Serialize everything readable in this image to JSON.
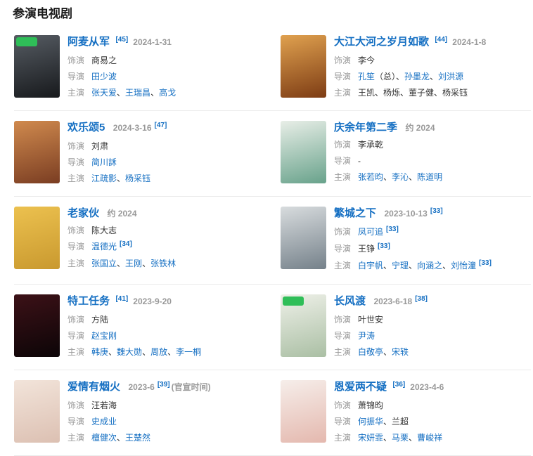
{
  "header": {
    "title": "参演电视剧"
  },
  "colors": {
    "link_blue": "#136ec2",
    "label_gray": "#999999",
    "text_dark": "#333333",
    "divider": "#ebebeb",
    "badge_green": "#2fbe58"
  },
  "items": [
    {
      "title": "阿麦从军",
      "meta": [
        {
          "kind": "ref",
          "text": "[45]"
        },
        {
          "kind": "date",
          "text": "2024-1-31"
        }
      ],
      "poster": {
        "c1": "#565c63",
        "c2": "#17191c",
        "badge": true
      },
      "lines": [
        {
          "label": "饰演",
          "segs": [
            {
              "text": "商易之",
              "link": false
            }
          ]
        },
        {
          "label": "导演",
          "segs": [
            {
              "text": "田少波",
              "link": true
            }
          ]
        },
        {
          "label": "主演",
          "segs": [
            {
              "text": "张天爱",
              "link": true
            },
            {
              "text": "、",
              "link": false
            },
            {
              "text": "王瑞昌",
              "link": true
            },
            {
              "text": "、",
              "link": false
            },
            {
              "text": "高戈",
              "link": true
            }
          ]
        }
      ]
    },
    {
      "title": "大江大河之岁月如歌",
      "meta": [
        {
          "kind": "ref",
          "text": "[44]"
        },
        {
          "kind": "date",
          "text": "2024-1-8"
        }
      ],
      "poster": {
        "c1": "#e0a14f",
        "c2": "#7d3c14",
        "badge": false
      },
      "lines": [
        {
          "label": "饰演",
          "segs": [
            {
              "text": "李今",
              "link": false
            }
          ]
        },
        {
          "label": "导演",
          "segs": [
            {
              "text": "孔笙",
              "link": true
            },
            {
              "text": "（总）、",
              "link": false
            },
            {
              "text": "孙墨龙",
              "link": true
            },
            {
              "text": "、",
              "link": false
            },
            {
              "text": "刘洪源",
              "link": true
            }
          ]
        },
        {
          "label": "主演",
          "segs": [
            {
              "text": "王凯、杨烁、董子健、杨采钰",
              "link": false
            }
          ]
        }
      ]
    },
    {
      "title": "欢乐颂5",
      "meta": [
        {
          "kind": "date",
          "text": "2024-3-16"
        },
        {
          "kind": "ref",
          "text": "[47]"
        }
      ],
      "poster": {
        "c1": "#d08a4e",
        "c2": "#7a3d22",
        "badge": false
      },
      "lines": [
        {
          "label": "饰演",
          "segs": [
            {
              "text": "刘肃",
              "link": false
            }
          ]
        },
        {
          "label": "导演",
          "segs": [
            {
              "text": "简川訸",
              "link": true
            }
          ]
        },
        {
          "label": "主演",
          "segs": [
            {
              "text": "江疏影",
              "link": true
            },
            {
              "text": "、",
              "link": false
            },
            {
              "text": "杨采钰",
              "link": true
            }
          ]
        }
      ]
    },
    {
      "title": "庆余年第二季",
      "meta": [
        {
          "kind": "date",
          "text": "约 2024"
        }
      ],
      "poster": {
        "c1": "#e8eee7",
        "c2": "#68a28b",
        "badge": false
      },
      "lines": [
        {
          "label": "饰演",
          "segs": [
            {
              "text": "李承乾",
              "link": false
            }
          ]
        },
        {
          "label": "导演",
          "segs": [
            {
              "text": "-",
              "link": false
            }
          ]
        },
        {
          "label": "主演",
          "segs": [
            {
              "text": "张若昀",
              "link": true
            },
            {
              "text": "、",
              "link": false
            },
            {
              "text": "李沁",
              "link": true
            },
            {
              "text": "、",
              "link": false
            },
            {
              "text": "陈道明",
              "link": true
            }
          ]
        }
      ]
    },
    {
      "title": "老家伙",
      "meta": [
        {
          "kind": "date",
          "text": "约 2024"
        }
      ],
      "poster": {
        "c1": "#ecc14f",
        "c2": "#c9992f",
        "badge": false
      },
      "lines": [
        {
          "label": "饰演",
          "segs": [
            {
              "text": "陈大志",
              "link": false
            }
          ]
        },
        {
          "label": "导演",
          "segs": [
            {
              "text": "温德光",
              "link": true
            },
            {
              "text": "[34]",
              "ref": true
            }
          ]
        },
        {
          "label": "主演",
          "segs": [
            {
              "text": "张国立",
              "link": true
            },
            {
              "text": "、",
              "link": false
            },
            {
              "text": "王刚",
              "link": true
            },
            {
              "text": "、",
              "link": false
            },
            {
              "text": "张铁林",
              "link": true
            }
          ]
        }
      ]
    },
    {
      "title": "繁城之下",
      "meta": [
        {
          "kind": "date",
          "text": "2023-10-13"
        },
        {
          "kind": "ref",
          "text": "[33]"
        }
      ],
      "poster": {
        "c1": "#d8dcde",
        "c2": "#75818a",
        "badge": false
      },
      "lines": [
        {
          "label": "饰演",
          "segs": [
            {
              "text": "凤可追",
              "link": true
            },
            {
              "text": "[33]",
              "ref": true
            }
          ]
        },
        {
          "label": "导演",
          "segs": [
            {
              "text": "王铮",
              "link": false
            },
            {
              "text": "[33]",
              "ref": true
            }
          ]
        },
        {
          "label": "主演",
          "segs": [
            {
              "text": "白宇帆",
              "link": true
            },
            {
              "text": "、",
              "link": false
            },
            {
              "text": "宁理",
              "link": true
            },
            {
              "text": "、",
              "link": false
            },
            {
              "text": "向涵之",
              "link": true
            },
            {
              "text": "、",
              "link": false
            },
            {
              "text": "刘怡潼",
              "link": true
            },
            {
              "text": "[33]",
              "ref": true
            }
          ]
        }
      ]
    },
    {
      "title": "特工任务",
      "meta": [
        {
          "kind": "ref",
          "text": "[41]"
        },
        {
          "kind": "date",
          "text": "2023-9-20"
        }
      ],
      "poster": {
        "c1": "#3c1117",
        "c2": "#0c0507",
        "badge": false
      },
      "lines": [
        {
          "label": "饰演",
          "segs": [
            {
              "text": "方陆",
              "link": false
            }
          ]
        },
        {
          "label": "导演",
          "segs": [
            {
              "text": "赵宝刚",
              "link": true
            }
          ]
        },
        {
          "label": "主演",
          "segs": [
            {
              "text": "韩庚",
              "link": true
            },
            {
              "text": "、",
              "link": false
            },
            {
              "text": "魏大勋",
              "link": true
            },
            {
              "text": "、",
              "link": false
            },
            {
              "text": "周放",
              "link": true
            },
            {
              "text": "、",
              "link": false
            },
            {
              "text": "李一桐",
              "link": true
            }
          ]
        }
      ]
    },
    {
      "title": "长风渡",
      "meta": [
        {
          "kind": "date",
          "text": "2023-6-18"
        },
        {
          "kind": "ref",
          "text": "[38]"
        }
      ],
      "poster": {
        "c1": "#eef0e8",
        "c2": "#aabfa4",
        "badge": true
      },
      "lines": [
        {
          "label": "饰演",
          "segs": [
            {
              "text": "叶世安",
              "link": false
            }
          ]
        },
        {
          "label": "导演",
          "segs": [
            {
              "text": "尹涛",
              "link": true
            }
          ]
        },
        {
          "label": "主演",
          "segs": [
            {
              "text": "白敬亭",
              "link": true
            },
            {
              "text": "、",
              "link": false
            },
            {
              "text": "宋轶",
              "link": true
            }
          ]
        }
      ]
    },
    {
      "title": "爱情有烟火",
      "meta": [
        {
          "kind": "date",
          "text": "2023-6"
        },
        {
          "kind": "ref",
          "text": "[39]"
        },
        {
          "kind": "note",
          "text": "(官宣时间)"
        }
      ],
      "poster": {
        "c1": "#f2e4da",
        "c2": "#dcc0b2",
        "badge": false
      },
      "lines": [
        {
          "label": "饰演",
          "segs": [
            {
              "text": "汪若海",
              "link": false
            }
          ]
        },
        {
          "label": "导演",
          "segs": [
            {
              "text": "史成业",
              "link": true
            }
          ]
        },
        {
          "label": "主演",
          "segs": [
            {
              "text": "檀健次",
              "link": true
            },
            {
              "text": "、",
              "link": false
            },
            {
              "text": "王楚然",
              "link": true
            }
          ]
        }
      ]
    },
    {
      "title": "恩爱两不疑",
      "meta": [
        {
          "kind": "ref",
          "text": "[36]"
        },
        {
          "kind": "date",
          "text": "2023-4-6"
        }
      ],
      "poster": {
        "c1": "#f6eeea",
        "c2": "#e4b8ae",
        "badge": false
      },
      "lines": [
        {
          "label": "饰演",
          "segs": [
            {
              "text": "萧锦昀",
              "link": false
            }
          ]
        },
        {
          "label": "导演",
          "segs": [
            {
              "text": "何振华",
              "link": true
            },
            {
              "text": "、",
              "link": false
            },
            {
              "text": "兰超",
              "link": false
            }
          ]
        },
        {
          "label": "主演",
          "segs": [
            {
              "text": "宋妍霏",
              "link": true
            },
            {
              "text": "、",
              "link": false
            },
            {
              "text": "马栗",
              "link": true
            },
            {
              "text": "、",
              "link": false
            },
            {
              "text": "曹峻祥",
              "link": true
            }
          ]
        }
      ]
    }
  ]
}
